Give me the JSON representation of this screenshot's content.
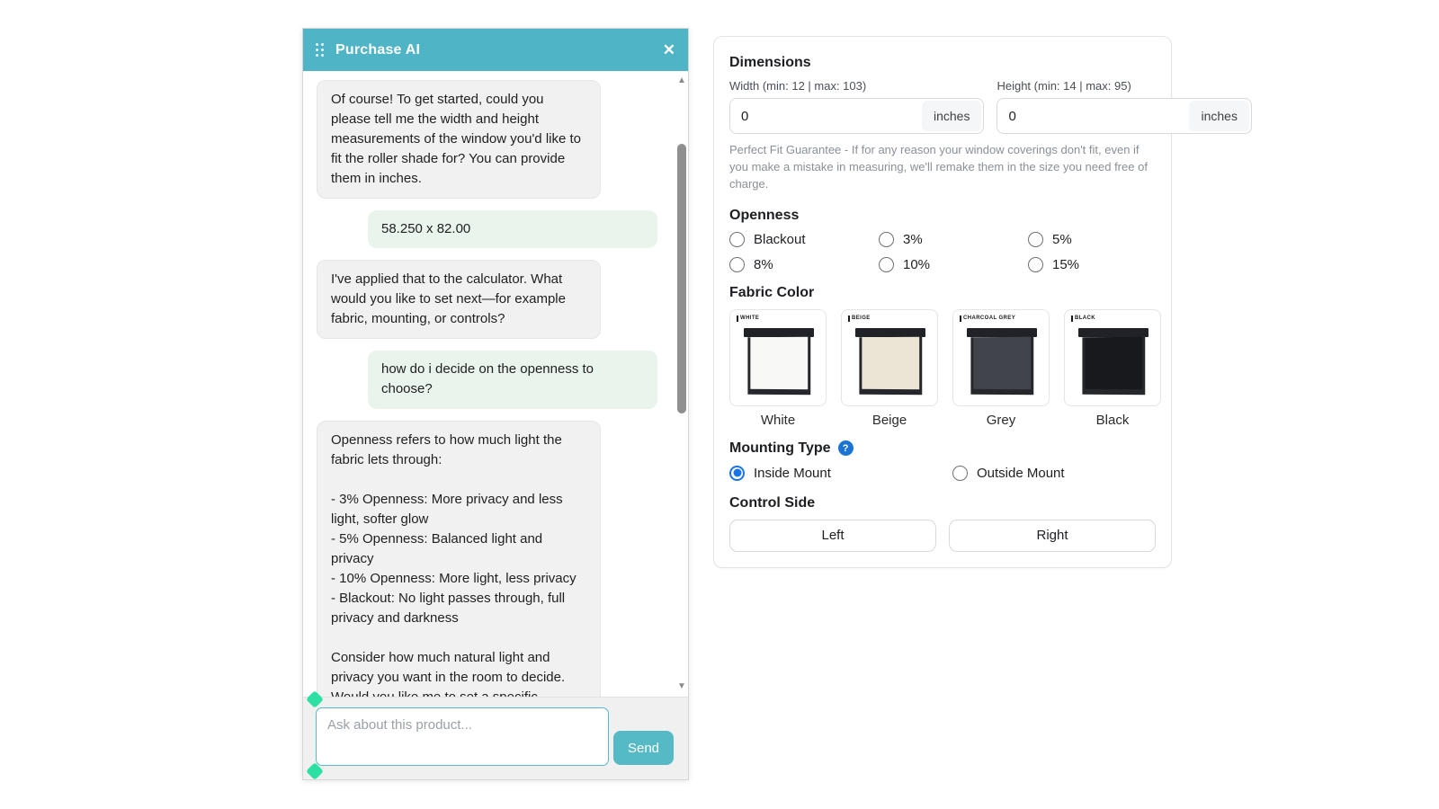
{
  "colors": {
    "teal_accent": "#4FB5C6",
    "mint_handle": "#2BE0A2",
    "selected_radio_blue": "#1A73E8",
    "help_badge_blue": "#1B73D3",
    "bot_bubble": "#F1F1F1",
    "user_bubble": "#E9F4ED"
  },
  "chat": {
    "title": "Purchase AI",
    "close_label": "✕",
    "messages": [
      {
        "role": "bot",
        "text": "Of course! To get started, could you please tell me the width and height measurements of the window you'd like to fit the roller shade for? You can provide them in inches."
      },
      {
        "role": "user",
        "text": "58.250 x 82.00"
      },
      {
        "role": "bot",
        "text": "I've applied that to the calculator. What would you like to set next—for example fabric, mounting, or controls?"
      },
      {
        "role": "user",
        "text": "how do i decide on the openness to choose?"
      },
      {
        "role": "bot",
        "text": "Openness refers to how much light the fabric lets through:\n\n- 3% Openness: More privacy and less light, softer glow\n- 5% Openness: Balanced light and privacy\n- 10% Openness: More light, less privacy\n- Blackout: No light passes through, full privacy and darkness\n\nConsider how much natural light and privacy you want in the room to decide. Would you like me to set a specific openness level for you?"
      }
    ],
    "input_placeholder": "Ask about this product...",
    "send_label": "Send",
    "scroll_up_glyph": "▲",
    "scroll_down_glyph": "▼"
  },
  "panel": {
    "dimensions": {
      "title": "Dimensions",
      "width_label": "Width (min: 12 | max: 103)",
      "height_label": "Height (min: 14 | max: 95)",
      "width_value": "0",
      "height_value": "0",
      "unit": "inches",
      "guarantee": "Perfect Fit Guarantee - If for any reason your window coverings don't fit, even if you make a mistake in measuring, we'll remake them in the size you need free of charge."
    },
    "openness": {
      "title": "Openness",
      "options": [
        {
          "label": "Blackout",
          "selected": false
        },
        {
          "label": "3%",
          "selected": false
        },
        {
          "label": "5%",
          "selected": false
        },
        {
          "label": "8%",
          "selected": false
        },
        {
          "label": "10%",
          "selected": false
        },
        {
          "label": "15%",
          "selected": false
        }
      ]
    },
    "fabric": {
      "title": "Fabric Color",
      "options": [
        {
          "tag": "WHITE",
          "name": "White",
          "fill": "#f8f8f6"
        },
        {
          "tag": "BEIGE",
          "name": "Beige",
          "fill": "#ece5d5"
        },
        {
          "tag": "CHARCOAL GREY",
          "name": "Grey",
          "fill": "#41454b"
        },
        {
          "tag": "BLACK",
          "name": "Black",
          "fill": "#17191d"
        }
      ]
    },
    "mounting": {
      "title": "Mounting Type",
      "help_glyph": "?",
      "options": [
        {
          "label": "Inside Mount",
          "selected": true
        },
        {
          "label": "Outside Mount",
          "selected": false
        }
      ]
    },
    "control_side": {
      "title": "Control Side",
      "options": [
        {
          "label": "Left"
        },
        {
          "label": "Right"
        }
      ]
    }
  }
}
